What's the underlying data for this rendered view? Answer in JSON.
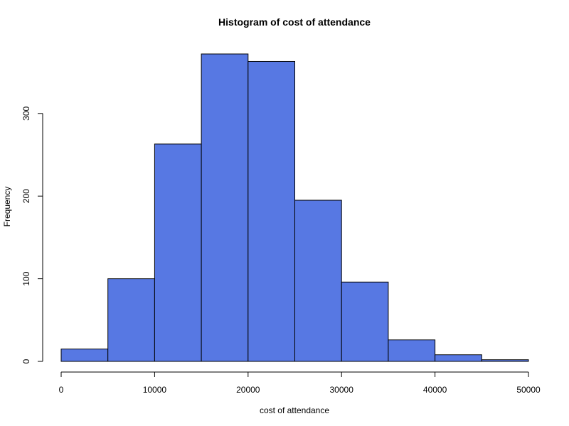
{
  "chart_data": {
    "type": "bar",
    "title": "Histogram of cost of attendance",
    "xlabel": "cost of attendance",
    "ylabel": "Frequency",
    "bin_edges": [
      0,
      5000,
      10000,
      15000,
      20000,
      25000,
      30000,
      35000,
      40000,
      45000,
      50000
    ],
    "values": [
      15,
      100,
      263,
      372,
      363,
      195,
      96,
      26,
      8,
      2
    ],
    "xlim": [
      0,
      50000
    ],
    "ylim": [
      0,
      372
    ],
    "xticks": [
      0,
      10000,
      20000,
      30000,
      40000,
      50000
    ],
    "yticks": [
      0,
      100,
      200,
      300
    ],
    "bar_color": "#5778e3",
    "edge_color": "#000000",
    "grid": false,
    "legend": "none"
  }
}
